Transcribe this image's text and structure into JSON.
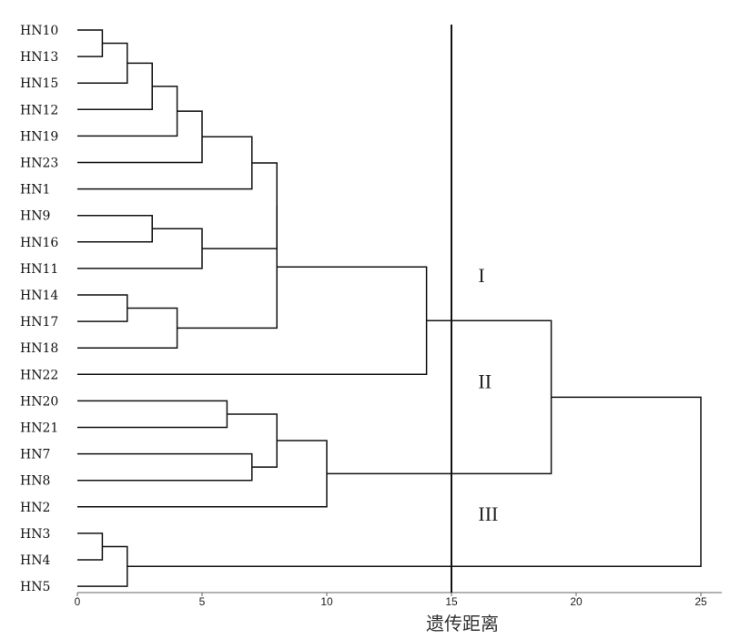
{
  "chart_data": {
    "type": "dendrogram",
    "title": "",
    "xlabel": "遗传距离",
    "ylabel": "",
    "xlim": [
      0,
      25
    ],
    "x_ticks": [
      0,
      5,
      10,
      15,
      20,
      25
    ],
    "grid": false,
    "leaves": [
      "HN10",
      "HN13",
      "HN15",
      "HN12",
      "HN19",
      "HN23",
      "HN1",
      "HN9",
      "HN16",
      "HN11",
      "HN14",
      "HN17",
      "HN18",
      "HN22",
      "HN20",
      "HN21",
      "HN7",
      "HN8",
      "HN2",
      "HN3",
      "HN4",
      "HN5"
    ],
    "merges": [
      {
        "left": "HN10",
        "right": "HN13",
        "height": 1
      },
      {
        "left": "m0",
        "right": "HN15",
        "height": 2
      },
      {
        "left": "m1",
        "right": "HN12",
        "height": 3
      },
      {
        "left": "m2",
        "right": "HN19",
        "height": 4
      },
      {
        "left": "m3",
        "right": "HN23",
        "height": 5
      },
      {
        "left": "m4",
        "right": "HN1",
        "height": 7
      },
      {
        "left": "HN9",
        "right": "HN16",
        "height": 3
      },
      {
        "left": "m6",
        "right": "HN11",
        "height": 5
      },
      {
        "left": "m5",
        "right": "m7",
        "height": 8
      },
      {
        "left": "HN14",
        "right": "HN17",
        "height": 2
      },
      {
        "left": "m9",
        "right": "HN18",
        "height": 4
      },
      {
        "left": "m8",
        "right": "m10",
        "height": 8
      },
      {
        "left": "m11",
        "right": "HN22",
        "height": 14
      },
      {
        "left": "HN20",
        "right": "HN21",
        "height": 6
      },
      {
        "left": "HN7",
        "right": "HN8",
        "height": 7
      },
      {
        "left": "m13",
        "right": "m14",
        "height": 8
      },
      {
        "left": "m15",
        "right": "HN2",
        "height": 10
      },
      {
        "left": "m12",
        "right": "m16",
        "height": 19
      },
      {
        "left": "HN3",
        "right": "HN4",
        "height": 1
      },
      {
        "left": "m18",
        "right": "HN5",
        "height": 2
      },
      {
        "left": "m17",
        "right": "m19",
        "height": 25
      }
    ],
    "cut_line": 15,
    "clusters": [
      {
        "label": "I",
        "x": 16,
        "after_leaf": "HN14"
      },
      {
        "label": "II",
        "x": 16,
        "after_leaf": "HN20"
      },
      {
        "label": "III",
        "x": 16,
        "after_leaf": "HN3"
      }
    ]
  }
}
